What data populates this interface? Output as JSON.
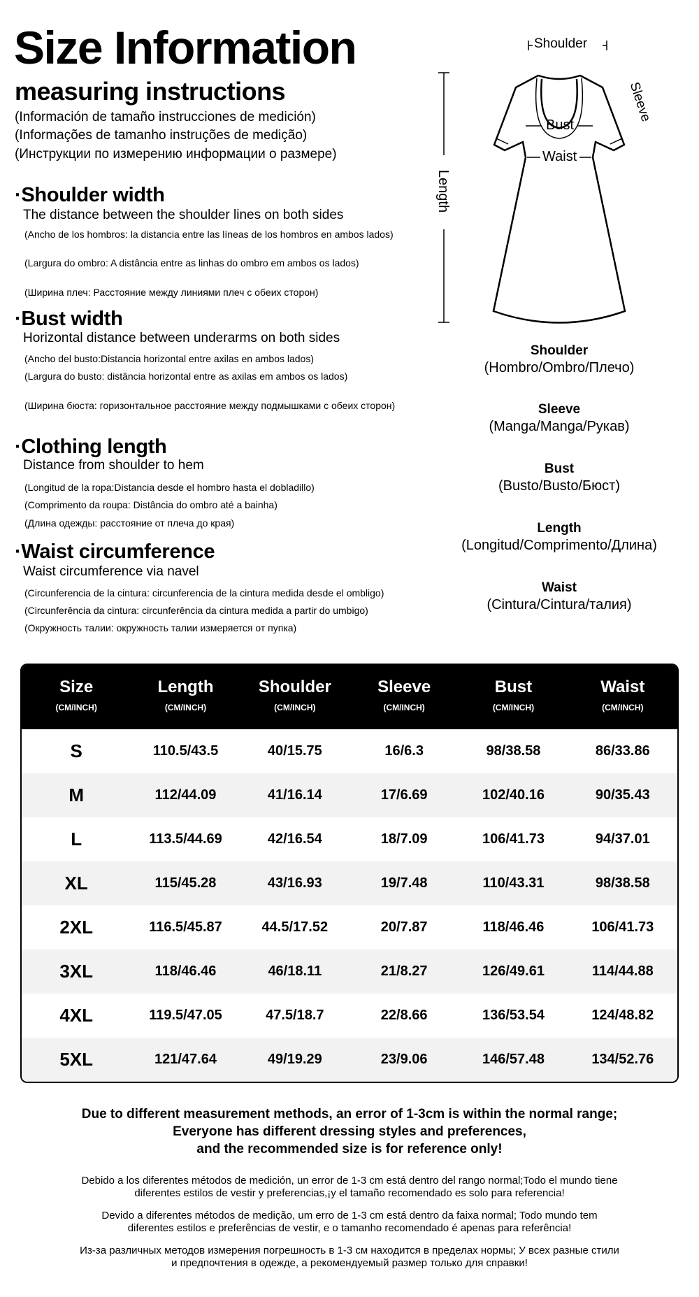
{
  "header": {
    "title": "Size Information",
    "subtitle": "measuring instructions",
    "translations": [
      "(Información de tamaño instrucciones de medición)",
      "(Informações de tamanho instruções de medição)",
      "(Инструкции по измерению информации о размере)"
    ]
  },
  "sections": [
    {
      "heading": "·Shoulder width",
      "desc": "The distance between the shoulder lines on both sides",
      "notes": [
        "(Ancho de los hombros: la distancia entre las líneas de los hombros en ambos lados)",
        "(Largura do ombro: A distância entre as linhas do ombro em ambos os lados)",
        "(Ширина плеч: Расстояние между линиями плеч с обеих сторон)"
      ]
    },
    {
      "heading": "·Bust width",
      "desc": "Horizontal distance between underarms on both sides",
      "notes": [
        "(Ancho del busto:Distancia horizontal entre axilas en ambos lados)",
        "(Largura do busto: distância horizontal entre as axilas em ambos os lados)",
        "(Ширина бюста: горизонтальное расстояние между подмышками с обеих сторон)"
      ]
    },
    {
      "heading": "·Clothing length",
      "desc": "Distance from shoulder to hem",
      "notes": [
        "(Longitud de la ropa:Distancia desde el hombro hasta el dobladillo)",
        "(Comprimento da roupa: Distância do ombro até a bainha)",
        "(Длина одежды: расстояние от плеча до края)"
      ]
    },
    {
      "heading": "·Waist circumference",
      "desc": "Waist circumference via navel",
      "notes": [
        "(Circunferencia de la cintura: circunferencia de la cintura medida desde el ombligo)",
        "(Circunferência da cintura: circunferência da cintura medida a partir do umbigo)",
        "(Окружность талии: окружность талии измеряется от пупка)"
      ]
    }
  ],
  "diagram": {
    "shoulder": "Shoulder",
    "sleeve": "Sleeve",
    "bust": "Bust",
    "waist": "Waist",
    "length": "Length"
  },
  "legend": [
    {
      "term": "Shoulder",
      "trans": "(Hombro/Ombro/Плечо)"
    },
    {
      "term": "Sleeve",
      "trans": "(Manga/Manga/Рукав)"
    },
    {
      "term": "Bust",
      "trans": "(Busto/Busto/Бюст)"
    },
    {
      "term": "Length",
      "trans": "(Longitud/Comprimento/Длина)"
    },
    {
      "term": "Waist",
      "trans": "(Cintura/Cintura/талия)"
    }
  ],
  "table": {
    "columns": [
      {
        "label": "Size",
        "unit": "(CM/INCH)"
      },
      {
        "label": "Length",
        "unit": "(CM/INCH)"
      },
      {
        "label": "Shoulder",
        "unit": "(CM/INCH)"
      },
      {
        "label": "Sleeve",
        "unit": "(CM/INCH)"
      },
      {
        "label": "Bust",
        "unit": "(CM/INCH)"
      },
      {
        "label": "Waist",
        "unit": "(CM/INCH)"
      }
    ],
    "rows": [
      [
        "S",
        "110.5/43.5",
        "40/15.75",
        "16/6.3",
        "98/38.58",
        "86/33.86"
      ],
      [
        "M",
        "112/44.09",
        "41/16.14",
        "17/6.69",
        "102/40.16",
        "90/35.43"
      ],
      [
        "L",
        "113.5/44.69",
        "42/16.54",
        "18/7.09",
        "106/41.73",
        "94/37.01"
      ],
      [
        "XL",
        "115/45.28",
        "43/16.93",
        "19/7.48",
        "110/43.31",
        "98/38.58"
      ],
      [
        "2XL",
        "116.5/45.87",
        "44.5/17.52",
        "20/7.87",
        "118/46.46",
        "106/41.73"
      ],
      [
        "3XL",
        "118/46.46",
        "46/18.11",
        "21/8.27",
        "126/49.61",
        "114/44.88"
      ],
      [
        "4XL",
        "119.5/47.05",
        "47.5/18.7",
        "22/8.66",
        "136/53.54",
        "124/48.82"
      ],
      [
        "5XL",
        "121/47.64",
        "49/19.29",
        "23/9.06",
        "146/57.48",
        "134/52.76"
      ]
    ]
  },
  "footer": {
    "bold_lines": [
      "Due to different measurement methods, an error of 1-3cm is within the normal range;",
      "Everyone has different dressing styles and preferences,",
      "and the recommended size is for reference only!"
    ],
    "translations": [
      [
        "Debido a los diferentes métodos de medición, un error de 1-3 cm está dentro del rango normal;Todo el mundo tiene",
        "diferentes estilos de vestir y preferencias,¡y el tamaño recomendado es solo para referencia!"
      ],
      [
        "Devido a diferentes métodos de medição, um erro de 1-3 cm está dentro da faixa normal; Todo mundo tem",
        "diferentes estilos e preferências de vestir, e o tamanho recomendado é apenas para referência!"
      ],
      [
        "Из-за различных методов измерения погрешность в 1-3 см находится в пределах нормы; У всех разные стили",
        "и предпочтения в одежде, а рекомендуемый размер только для справки!"
      ]
    ]
  }
}
